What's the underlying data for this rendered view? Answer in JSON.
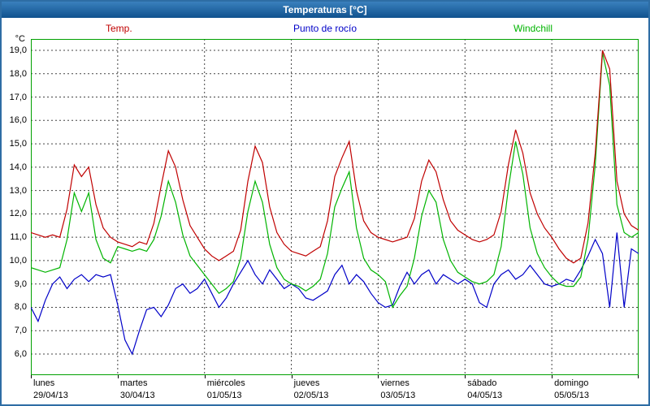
{
  "window": {
    "title": "Temperaturas [°C]"
  },
  "colors": {
    "title_bar": "#10528e",
    "window_border": "#2e6da4",
    "plot_border": "#00a000",
    "grid": "#444444",
    "temp": "#c00000",
    "dew": "#0000c8",
    "windchill": "#00b400"
  },
  "axis": {
    "unit_label": "°C",
    "y_ticks": [
      "19,0",
      "18,0",
      "17,0",
      "16,0",
      "15,0",
      "14,0",
      "13,0",
      "12,0",
      "11,0",
      "10,0",
      "9,0",
      "8,0",
      "7,0",
      "6,0"
    ],
    "days": [
      {
        "name": "lunes",
        "date": "29/04/13"
      },
      {
        "name": "martes",
        "date": "30/04/13"
      },
      {
        "name": "miércoles",
        "date": "01/05/13"
      },
      {
        "name": "jueves",
        "date": "02/05/13"
      },
      {
        "name": "viernes",
        "date": "03/05/13"
      },
      {
        "name": "sábado",
        "date": "04/05/13"
      },
      {
        "name": "domingo",
        "date": "05/05/13"
      }
    ]
  },
  "chart_data": {
    "type": "line",
    "title": "Temperaturas [°C]",
    "ylabel": "°C",
    "ylim": [
      6,
      19
    ],
    "grid": "dashed, horizontal every 1°C, vertical at each day boundary",
    "legend_position": "top",
    "x_description": "7 days (lunes 29/04/13 to domingo 05/05/13), points every 2 hours",
    "categories": [
      "lunes 29/04/13",
      "martes 30/04/13",
      "miércoles 01/05/13",
      "jueves 02/05/13",
      "viernes 03/05/13",
      "sábado 04/05/13",
      "domingo 05/05/13"
    ],
    "series": [
      {
        "name": "Temp.",
        "color": "#c00000",
        "values": [
          11.2,
          11.1,
          11.0,
          11.1,
          11.0,
          12.2,
          14.1,
          13.6,
          14.0,
          12.4,
          11.4,
          11.0,
          10.8,
          10.7,
          10.6,
          10.8,
          10.7,
          11.6,
          13.2,
          14.7,
          14.0,
          12.6,
          11.5,
          11.0,
          10.5,
          10.2,
          10.0,
          10.2,
          10.4,
          11.3,
          13.4,
          14.9,
          14.2,
          12.3,
          11.2,
          10.7,
          10.4,
          10.3,
          10.2,
          10.4,
          10.6,
          11.7,
          13.6,
          14.4,
          15.1,
          13.0,
          11.7,
          11.2,
          11.0,
          10.9,
          10.8,
          10.9,
          11.0,
          11.8,
          13.4,
          14.3,
          13.8,
          12.6,
          11.7,
          11.3,
          11.1,
          10.9,
          10.8,
          10.9,
          11.1,
          12.1,
          14.1,
          15.6,
          14.6,
          12.9,
          12.0,
          11.4,
          11.0,
          10.5,
          10.1,
          9.9,
          10.1,
          11.6,
          14.6,
          19.0,
          18.2,
          13.4,
          12.0,
          11.5,
          11.3
        ]
      },
      {
        "name": "Punto de rocío",
        "color": "#0000c8",
        "values": [
          8.0,
          7.4,
          8.3,
          9.0,
          9.3,
          8.8,
          9.2,
          9.4,
          9.1,
          9.4,
          9.3,
          9.4,
          8.1,
          6.6,
          6.0,
          7.0,
          7.9,
          8.0,
          7.6,
          8.1,
          8.8,
          9.0,
          8.6,
          8.8,
          9.2,
          8.6,
          8.0,
          8.4,
          9.0,
          9.5,
          10.0,
          9.4,
          9.0,
          9.6,
          9.2,
          8.8,
          9.0,
          8.8,
          8.4,
          8.3,
          8.5,
          8.7,
          9.4,
          9.8,
          9.0,
          9.4,
          9.1,
          8.6,
          8.2,
          8.0,
          8.1,
          8.9,
          9.5,
          9.0,
          9.4,
          9.6,
          9.0,
          9.4,
          9.2,
          9.0,
          9.2,
          9.0,
          8.2,
          8.0,
          9.0,
          9.4,
          9.6,
          9.2,
          9.4,
          9.8,
          9.4,
          9.0,
          8.9,
          9.0,
          9.2,
          9.1,
          9.6,
          10.2,
          10.9,
          10.3,
          8.0,
          11.2,
          8.0,
          10.5,
          10.3
        ]
      },
      {
        "name": "Windchill",
        "color": "#00b400",
        "values": [
          9.7,
          9.6,
          9.5,
          9.6,
          9.7,
          10.9,
          12.9,
          12.1,
          12.9,
          10.9,
          10.1,
          9.9,
          10.6,
          10.5,
          10.4,
          10.5,
          10.4,
          10.9,
          11.9,
          13.4,
          12.5,
          11.1,
          10.2,
          9.8,
          9.4,
          9.0,
          8.6,
          8.8,
          9.1,
          10.1,
          12.1,
          13.4,
          12.5,
          10.7,
          9.7,
          9.2,
          9.0,
          8.9,
          8.7,
          8.9,
          9.2,
          10.3,
          12.3,
          13.1,
          13.8,
          11.4,
          10.1,
          9.6,
          9.4,
          9.1,
          8.0,
          8.5,
          8.9,
          10.1,
          11.9,
          13.0,
          12.5,
          10.9,
          10.0,
          9.5,
          9.3,
          9.1,
          9.0,
          9.1,
          9.4,
          10.6,
          13.1,
          15.1,
          13.7,
          11.4,
          10.3,
          9.7,
          9.3,
          9.0,
          8.9,
          8.9,
          9.3,
          10.9,
          14.1,
          18.9,
          17.5,
          12.4,
          11.2,
          11.0,
          11.2
        ]
      }
    ]
  }
}
